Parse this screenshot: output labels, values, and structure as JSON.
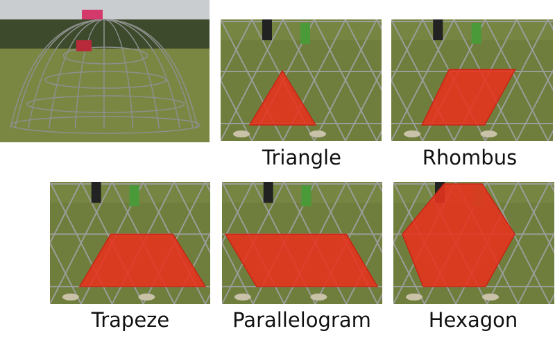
{
  "figure": {
    "overview_photo": {
      "description_icon": "geodesic-dome-photo"
    },
    "panels": [
      {
        "label": "Triangle",
        "shape_color": "#e8321e"
      },
      {
        "label": "Rhombus",
        "shape_color": "#e8321e"
      },
      {
        "label": "Trapeze",
        "shape_color": "#e8321e"
      },
      {
        "label": "Parallelogram",
        "shape_color": "#e8321e"
      },
      {
        "label": "Hexagon",
        "shape_color": "#e8321e"
      }
    ]
  }
}
